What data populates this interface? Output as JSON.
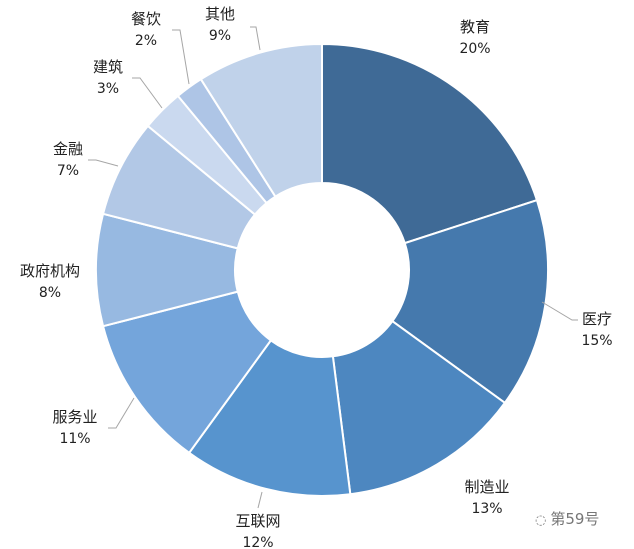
{
  "chart_data": {
    "type": "pie",
    "donut": true,
    "categories": [
      "教育",
      "医疗",
      "制造业",
      "互联网",
      "服务业",
      "政府机构",
      "金融",
      "建筑",
      "餐饮",
      "其他"
    ],
    "values": [
      20,
      15,
      13,
      12,
      11,
      8,
      7,
      3,
      2,
      9
    ],
    "value_labels": [
      "20%",
      "15%",
      "13%",
      "12%",
      "11%",
      "8%",
      "7%",
      "3%",
      "2%",
      "9%"
    ],
    "colors": [
      "#3f6a96",
      "#4579ad",
      "#4d87c0",
      "#5794ce",
      "#74a5db",
      "#97b9e1",
      "#b2c8e6",
      "#cad9ef",
      "#aec5e6",
      "#c0d2ea"
    ],
    "legend": "none"
  },
  "watermark": {
    "text": "第59号",
    "icon": "wechat-icon"
  }
}
